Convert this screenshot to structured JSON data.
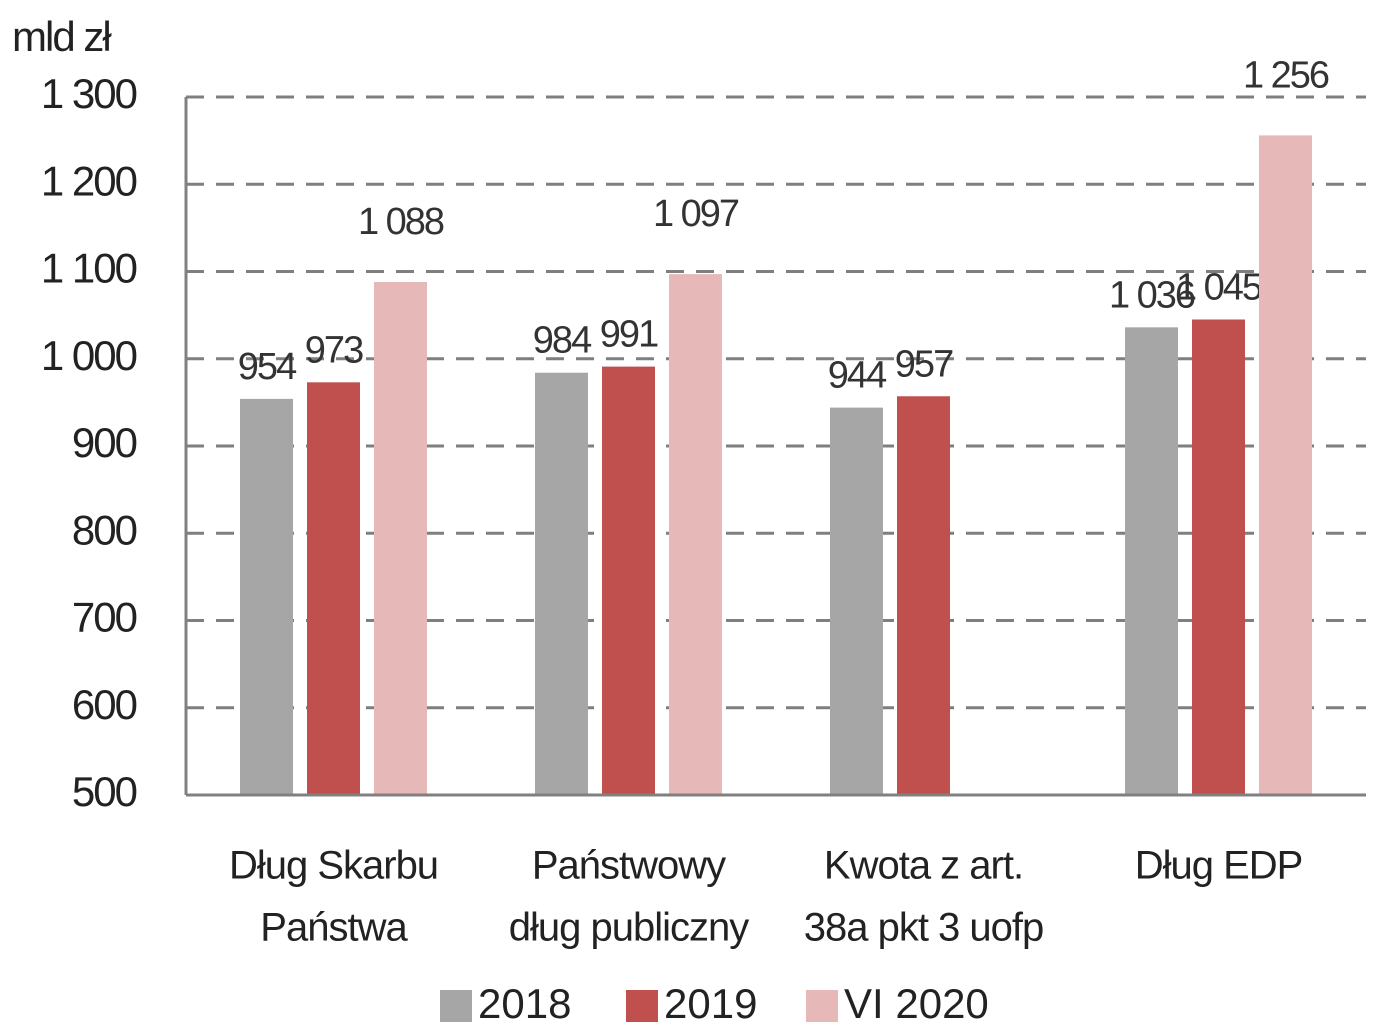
{
  "chart_data": {
    "type": "bar",
    "y_label": "mld zł",
    "categories": [
      [
        "Dług Skarbu",
        "Państwa"
      ],
      [
        "Państwowy",
        "dług publiczny"
      ],
      [
        "Kwota z art.",
        "38a pkt 3 uofp"
      ],
      [
        "Dług EDP"
      ]
    ],
    "series": [
      {
        "name": "2018",
        "color": "#a6a6a6",
        "values": [
          954,
          984,
          944,
          1036
        ],
        "value_labels": [
          "954",
          "984",
          "944",
          "1 036"
        ]
      },
      {
        "name": "2019",
        "color": "#c0504d",
        "values": [
          973,
          991,
          957,
          1045
        ],
        "value_labels": [
          "973",
          "991",
          "957",
          "1 045"
        ]
      },
      {
        "name": "VI 2020",
        "color": "#e6b9b8",
        "values": [
          1088,
          1097,
          null,
          1256
        ],
        "value_labels": [
          "1 088",
          "1 097",
          null,
          "1 256"
        ]
      }
    ],
    "ylim": [
      500,
      1300
    ],
    "yticks": [
      500,
      600,
      700,
      800,
      900,
      {
        "value": 1000,
        "label": "1 000"
      },
      {
        "value": 1100,
        "label": "1 100"
      },
      {
        "value": 1200,
        "label": "1 200"
      },
      {
        "value": 1300,
        "label": "1 300"
      }
    ],
    "grid": true,
    "legend": "bottom"
  }
}
